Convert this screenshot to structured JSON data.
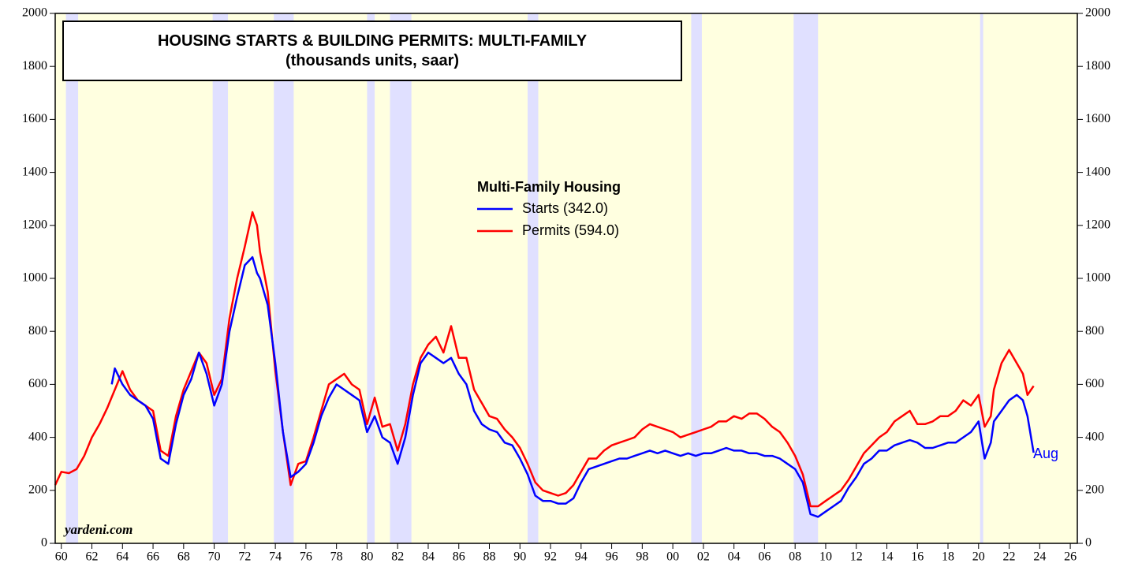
{
  "chart_data": {
    "type": "line",
    "title": "HOUSING STARTS & BUILDING PERMITS: MULTI-FAMILY",
    "subtitle": "(thousands units, saar)",
    "legend_title": "Multi-Family Housing",
    "source": "yardeni.com",
    "annotation": "Aug",
    "xlim": [
      1959.6,
      2026.46
    ],
    "ylim": [
      0,
      2000
    ],
    "y2lim": [
      0,
      2000
    ],
    "yticks": [
      0,
      200,
      400,
      600,
      800,
      1000,
      1200,
      1400,
      1600,
      1800,
      2000
    ],
    "y2ticks": [
      0,
      200,
      400,
      600,
      800,
      1000,
      1200,
      1400,
      1600,
      1800,
      2000
    ],
    "xticks": [
      {
        "value": 1960,
        "label": "60"
      },
      {
        "value": 1962,
        "label": "62"
      },
      {
        "value": 1964,
        "label": "64"
      },
      {
        "value": 1966,
        "label": "66"
      },
      {
        "value": 1968,
        "label": "68"
      },
      {
        "value": 1970,
        "label": "70"
      },
      {
        "value": 1972,
        "label": "72"
      },
      {
        "value": 1974,
        "label": "74"
      },
      {
        "value": 1976,
        "label": "76"
      },
      {
        "value": 1978,
        "label": "78"
      },
      {
        "value": 1980,
        "label": "80"
      },
      {
        "value": 1982,
        "label": "82"
      },
      {
        "value": 1984,
        "label": "84"
      },
      {
        "value": 1986,
        "label": "86"
      },
      {
        "value": 1988,
        "label": "88"
      },
      {
        "value": 1990,
        "label": "90"
      },
      {
        "value": 1992,
        "label": "92"
      },
      {
        "value": 1994,
        "label": "94"
      },
      {
        "value": 1996,
        "label": "96"
      },
      {
        "value": 1998,
        "label": "98"
      },
      {
        "value": 2000,
        "label": "00"
      },
      {
        "value": 2002,
        "label": "02"
      },
      {
        "value": 2004,
        "label": "04"
      },
      {
        "value": 2006,
        "label": "06"
      },
      {
        "value": 2008,
        "label": "08"
      },
      {
        "value": 2010,
        "label": "10"
      },
      {
        "value": 2012,
        "label": "12"
      },
      {
        "value": 2014,
        "label": "14"
      },
      {
        "value": 2016,
        "label": "16"
      },
      {
        "value": 2018,
        "label": "18"
      },
      {
        "value": 2020,
        "label": "20"
      },
      {
        "value": 2022,
        "label": "22"
      },
      {
        "value": 2024,
        "label": "24"
      },
      {
        "value": 2026,
        "label": "26"
      }
    ],
    "recessions": [
      [
        1960.3,
        1961.1
      ],
      [
        1969.9,
        1970.9
      ],
      [
        1973.9,
        1975.2
      ],
      [
        1980.0,
        1980.5
      ],
      [
        1981.5,
        1982.9
      ],
      [
        1990.5,
        1991.2
      ],
      [
        2001.2,
        2001.9
      ],
      [
        2007.9,
        2009.5
      ],
      [
        2020.1,
        2020.3
      ]
    ],
    "background_color": "#ffffe0",
    "recession_color": "#e0e0ff",
    "series": [
      {
        "name": "Starts (342.0)",
        "color": "#0000ff",
        "x": [
          1963.3,
          1963.5,
          1964,
          1964.5,
          1965,
          1965.5,
          1966,
          1966.5,
          1967,
          1967.5,
          1968,
          1968.5,
          1969,
          1969.5,
          1970,
          1970.5,
          1971,
          1971.5,
          1972,
          1972.5,
          1972.8,
          1973,
          1973.5,
          1974,
          1974.5,
          1975,
          1975.5,
          1976,
          1976.5,
          1977,
          1977.5,
          1978,
          1978.5,
          1979,
          1979.5,
          1980,
          1980.5,
          1981,
          1981.5,
          1982,
          1982.5,
          1983,
          1983.5,
          1984,
          1984.5,
          1985,
          1985.5,
          1986,
          1986.5,
          1987,
          1987.5,
          1988,
          1988.5,
          1989,
          1989.5,
          1990,
          1990.5,
          1991,
          1991.5,
          1992,
          1992.5,
          1993,
          1993.5,
          1994,
          1994.5,
          1995,
          1995.5,
          1996,
          1996.5,
          1997,
          1997.5,
          1998,
          1998.5,
          1999,
          1999.5,
          2000,
          2000.5,
          2001,
          2001.5,
          2002,
          2002.5,
          2003,
          2003.5,
          2004,
          2004.5,
          2005,
          2005.5,
          2006,
          2006.5,
          2007,
          2007.5,
          2008,
          2008.5,
          2009,
          2009.5,
          2010,
          2010.5,
          2011,
          2011.5,
          2012,
          2012.5,
          2013,
          2013.5,
          2014,
          2014.5,
          2015,
          2015.5,
          2016,
          2016.5,
          2017,
          2017.5,
          2018,
          2018.5,
          2019,
          2019.5,
          2020,
          2020.4,
          2020.8,
          2021,
          2021.5,
          2022,
          2022.5,
          2022.9,
          2023.2,
          2023.6
        ],
        "values": [
          600,
          660,
          600,
          560,
          540,
          520,
          470,
          320,
          300,
          450,
          560,
          620,
          720,
          640,
          520,
          600,
          800,
          930,
          1050,
          1080,
          1020,
          1000,
          900,
          680,
          420,
          250,
          270,
          300,
          380,
          480,
          550,
          600,
          580,
          560,
          540,
          420,
          480,
          400,
          380,
          300,
          400,
          560,
          680,
          720,
          700,
          680,
          700,
          640,
          600,
          500,
          450,
          430,
          420,
          380,
          370,
          320,
          260,
          180,
          160,
          160,
          150,
          150,
          170,
          230,
          280,
          290,
          300,
          310,
          320,
          320,
          330,
          340,
          350,
          340,
          350,
          340,
          330,
          340,
          330,
          340,
          340,
          350,
          360,
          350,
          350,
          340,
          340,
          330,
          330,
          320,
          300,
          280,
          230,
          110,
          100,
          120,
          140,
          160,
          210,
          250,
          300,
          320,
          350,
          350,
          370,
          380,
          390,
          380,
          360,
          360,
          370,
          380,
          380,
          400,
          420,
          460,
          320,
          380,
          460,
          500,
          540,
          560,
          540,
          480,
          342
        ]
      },
      {
        "name": "Permits (594.0)",
        "color": "#ff0000",
        "x": [
          1959.6,
          1960,
          1960.5,
          1961,
          1961.5,
          1962,
          1962.5,
          1963,
          1963.5,
          1964,
          1964.5,
          1965,
          1965.5,
          1966,
          1966.5,
          1967,
          1967.5,
          1968,
          1968.5,
          1969,
          1969.5,
          1970,
          1970.5,
          1971,
          1971.5,
          1972,
          1972.5,
          1972.8,
          1973,
          1973.5,
          1974,
          1974.5,
          1975,
          1975.5,
          1976,
          1976.5,
          1977,
          1977.5,
          1978,
          1978.5,
          1979,
          1979.5,
          1980,
          1980.5,
          1981,
          1981.5,
          1982,
          1982.5,
          1983,
          1983.5,
          1984,
          1984.5,
          1985,
          1985.5,
          1986,
          1986.5,
          1987,
          1987.5,
          1988,
          1988.5,
          1989,
          1989.5,
          1990,
          1990.5,
          1991,
          1991.5,
          1992,
          1992.5,
          1993,
          1993.5,
          1994,
          1994.5,
          1995,
          1995.5,
          1996,
          1996.5,
          1997,
          1997.5,
          1998,
          1998.5,
          1999,
          1999.5,
          2000,
          2000.5,
          2001,
          2001.5,
          2002,
          2002.5,
          2003,
          2003.5,
          2004,
          2004.5,
          2005,
          2005.5,
          2006,
          2006.5,
          2007,
          2007.5,
          2008,
          2008.5,
          2009,
          2009.5,
          2010,
          2010.5,
          2011,
          2011.5,
          2012,
          2012.5,
          2013,
          2013.5,
          2014,
          2014.5,
          2015,
          2015.5,
          2016,
          2016.5,
          2017,
          2017.5,
          2018,
          2018.5,
          2019,
          2019.5,
          2020,
          2020.4,
          2020.8,
          2021,
          2021.5,
          2022,
          2022.5,
          2022.9,
          2023.2,
          2023.6
        ],
        "values": [
          220,
          270,
          265,
          280,
          330,
          400,
          450,
          510,
          580,
          650,
          580,
          540,
          520,
          500,
          350,
          330,
          480,
          580,
          650,
          720,
          680,
          560,
          620,
          850,
          1000,
          1120,
          1250,
          1200,
          1100,
          950,
          650,
          420,
          220,
          300,
          310,
          400,
          500,
          600,
          620,
          640,
          600,
          580,
          450,
          550,
          440,
          450,
          350,
          450,
          600,
          700,
          750,
          780,
          720,
          820,
          700,
          700,
          580,
          530,
          480,
          470,
          430,
          400,
          360,
          300,
          230,
          200,
          190,
          180,
          190,
          220,
          270,
          320,
          320,
          350,
          370,
          380,
          390,
          400,
          430,
          450,
          440,
          430,
          420,
          400,
          410,
          420,
          430,
          440,
          460,
          460,
          480,
          470,
          490,
          490,
          470,
          440,
          420,
          380,
          330,
          260,
          140,
          140,
          160,
          180,
          200,
          240,
          290,
          340,
          370,
          400,
          420,
          460,
          480,
          500,
          450,
          450,
          460,
          480,
          480,
          500,
          540,
          520,
          560,
          440,
          480,
          580,
          680,
          730,
          680,
          640,
          560,
          594
        ]
      }
    ]
  }
}
